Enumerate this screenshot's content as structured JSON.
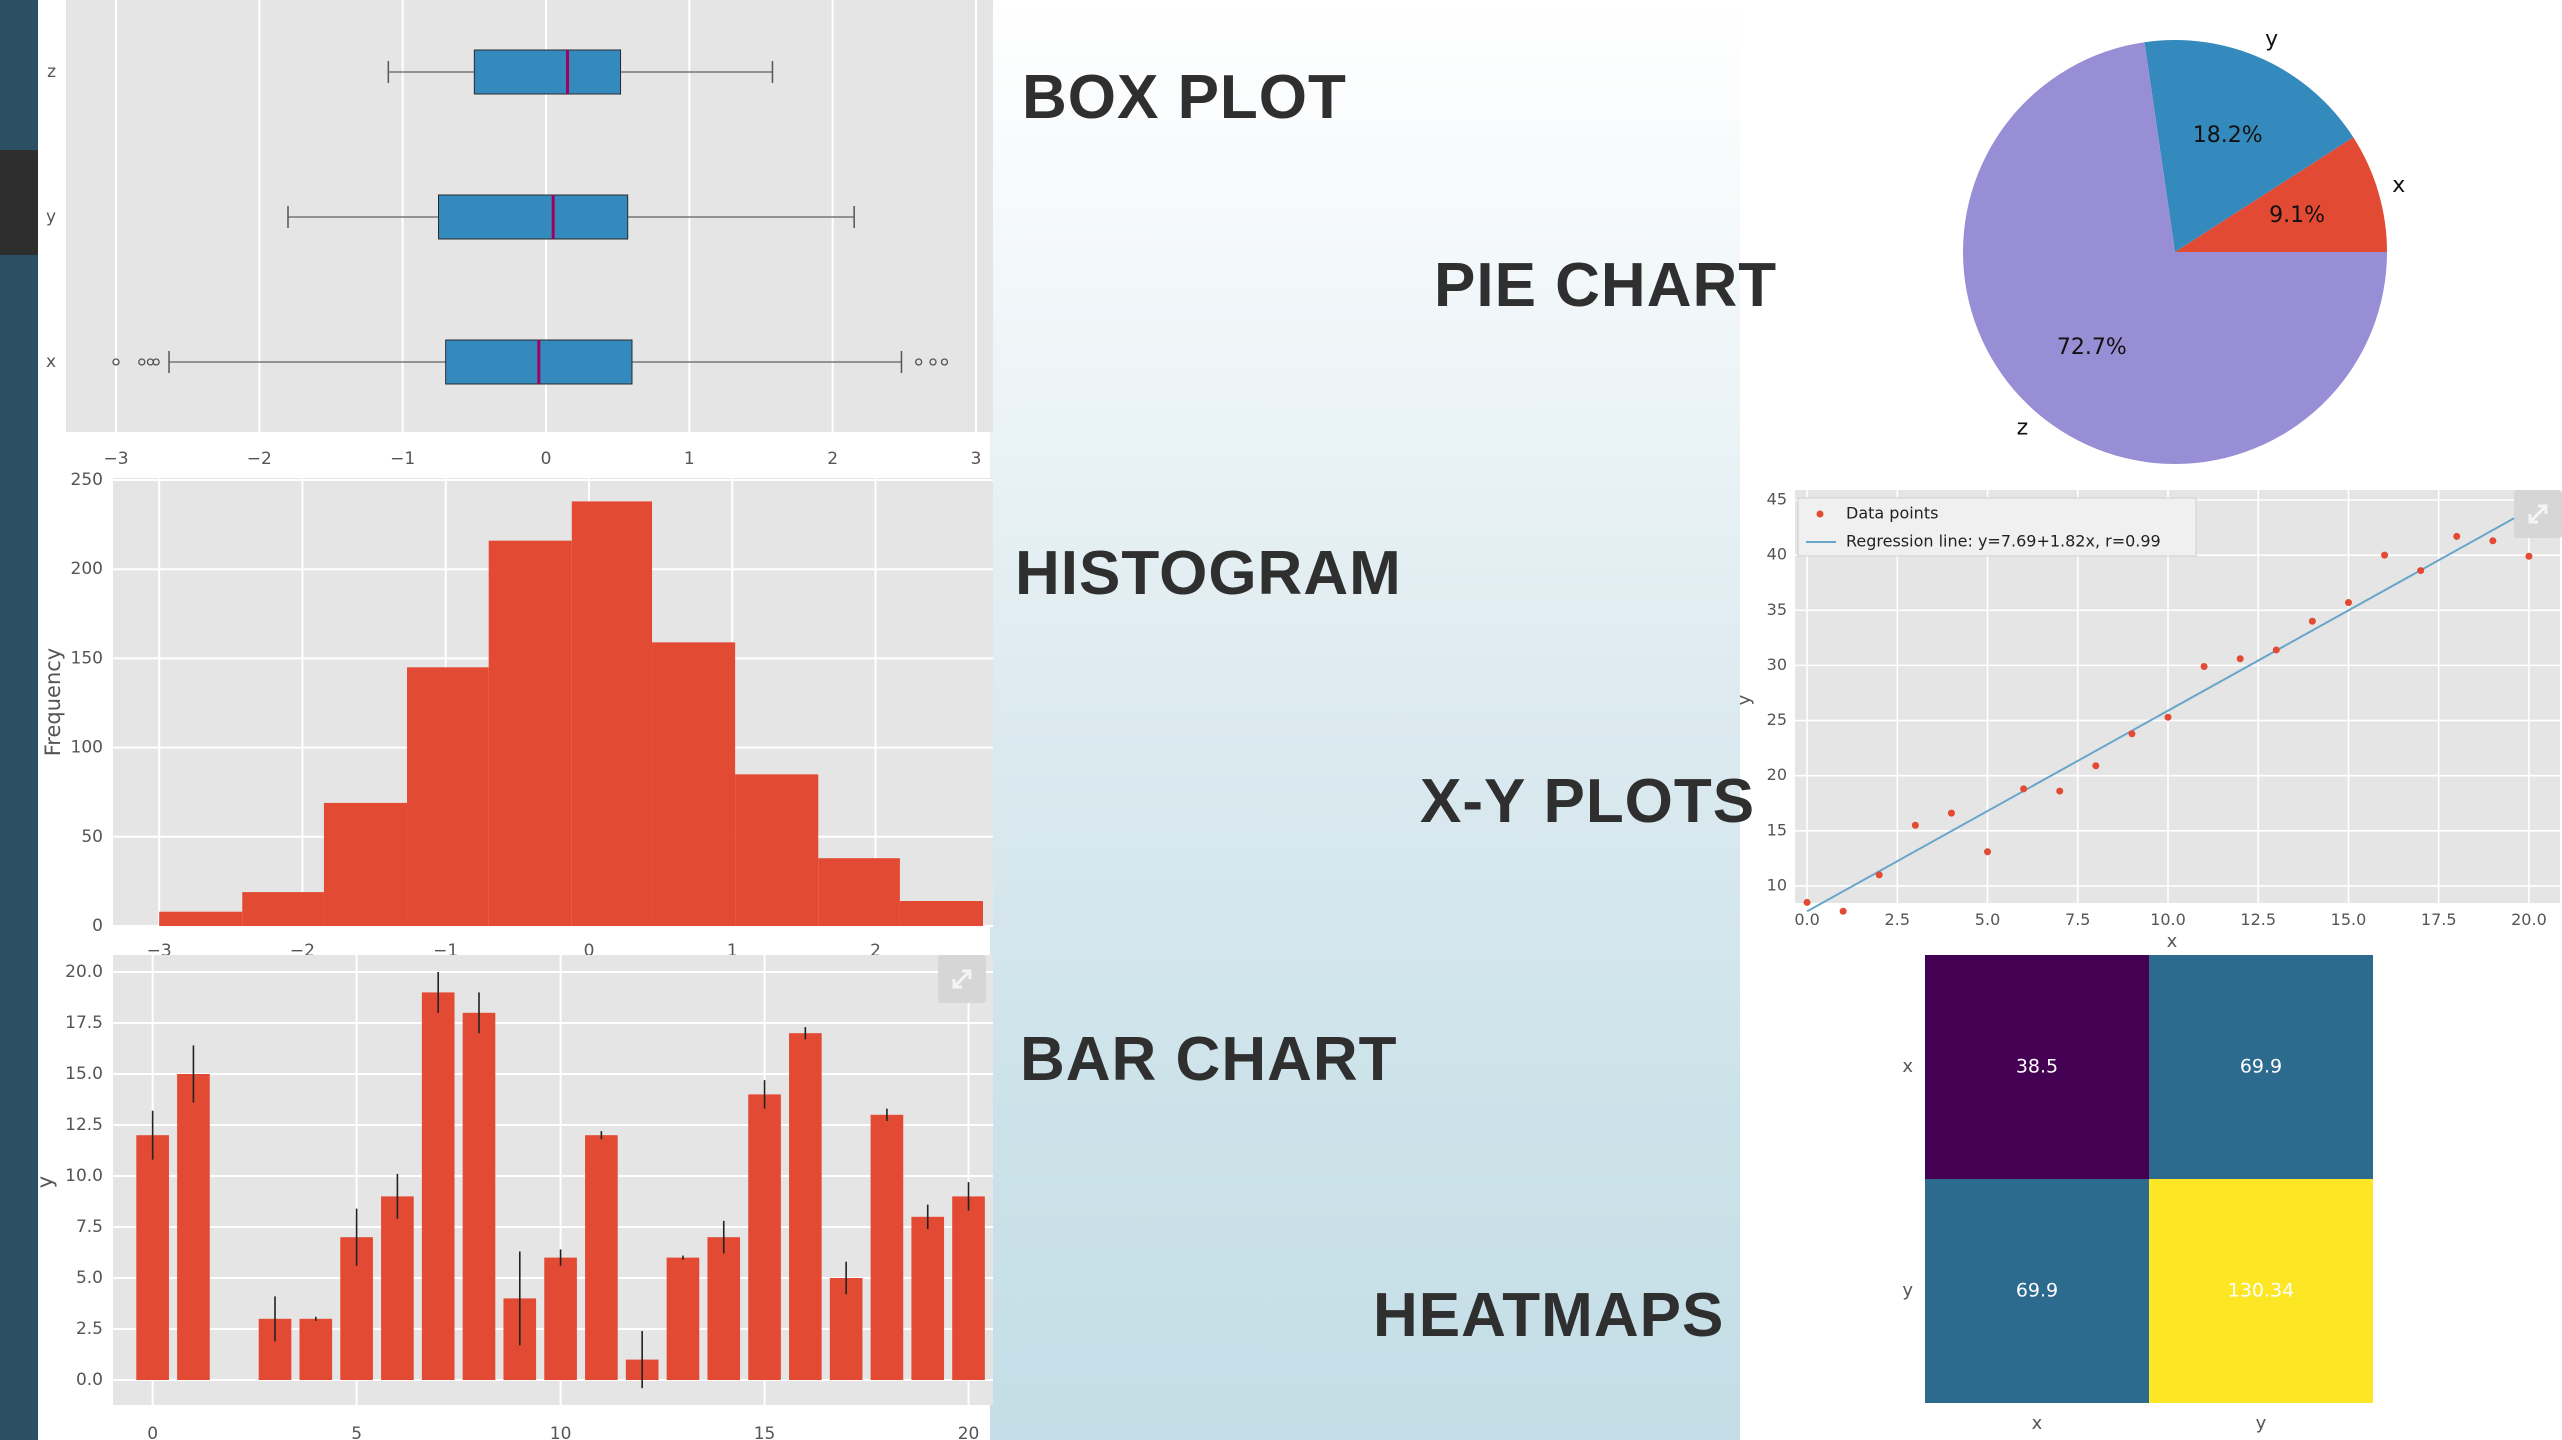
{
  "slide": {
    "labels": {
      "box_plot": "BOX PLOT",
      "pie_chart": "PIE CHART",
      "histogram": "HISTOGRAM",
      "xy_plots": "X-Y PLOTS",
      "bar_chart": "BAR CHART",
      "heatmaps": "HEATMAPS"
    },
    "colors": {
      "sidebar": "#2b4f63",
      "bar": "#e24a33",
      "box": "#348abd",
      "median": "#a00060",
      "pie_z": "#988ed5",
      "pie_y": "#348abd",
      "pie_x": "#e24a33",
      "line": "#69a6c9"
    }
  },
  "chart_data": [
    {
      "id": "box",
      "type": "box",
      "categories": [
        "z",
        "y",
        "x"
      ],
      "xlim": [
        -3,
        3
      ],
      "xticks": [
        -3,
        -2,
        -1,
        0,
        1,
        2,
        3
      ],
      "boxes": [
        {
          "label": "z",
          "whislo": -1.1,
          "q1": -0.5,
          "med": 0.15,
          "q3": 0.52,
          "whishi": 1.58,
          "fliers": []
        },
        {
          "label": "y",
          "whislo": -1.8,
          "q1": -0.75,
          "med": 0.05,
          "q3": 0.57,
          "whishi": 2.15,
          "fliers": []
        },
        {
          "label": "x",
          "whislo": -2.63,
          "q1": -0.7,
          "med": -0.05,
          "q3": 0.6,
          "whishi": 2.48,
          "fliers": [
            -3.0,
            -2.82,
            -2.76,
            -2.72,
            2.6,
            2.7,
            2.78
          ]
        }
      ]
    },
    {
      "id": "pie",
      "type": "pie",
      "slices": [
        {
          "label": "x",
          "value": 9.1,
          "text": "9.1%"
        },
        {
          "label": "y",
          "value": 18.2,
          "text": "18.2%"
        },
        {
          "label": "z",
          "value": 72.7,
          "text": "72.7%"
        }
      ]
    },
    {
      "id": "hist",
      "type": "bar",
      "ylabel": "Frequency",
      "xlim": [
        -3.05,
        2.75
      ],
      "ylim": [
        0,
        250
      ],
      "xticks": [
        -3,
        -2,
        -1,
        0,
        1,
        2
      ],
      "yticks": [
        0,
        50,
        100,
        150,
        200,
        250
      ],
      "bins": [
        {
          "x0": -3.0,
          "x1": -2.42,
          "count": 8
        },
        {
          "x0": -2.42,
          "x1": -1.85,
          "count": 19
        },
        {
          "x0": -1.85,
          "x1": -1.27,
          "count": 69
        },
        {
          "x0": -1.27,
          "x1": -0.7,
          "count": 145
        },
        {
          "x0": -0.7,
          "x1": -0.12,
          "count": 216
        },
        {
          "x0": -0.12,
          "x1": 0.44,
          "count": 238
        },
        {
          "x0": 0.44,
          "x1": 1.02,
          "count": 159
        },
        {
          "x0": 1.02,
          "x1": 1.6,
          "count": 85
        },
        {
          "x0": 1.6,
          "x1": 2.17,
          "count": 38
        },
        {
          "x0": 2.17,
          "x1": 2.75,
          "count": 14
        }
      ]
    },
    {
      "id": "xy",
      "type": "scatter",
      "xlabel": "x",
      "ylabel": "y",
      "xlim": [
        -0.5,
        20.5
      ],
      "ylim": [
        6,
        45
      ],
      "xticks": [
        0.0,
        2.5,
        5.0,
        7.5,
        10.0,
        12.5,
        15.0,
        17.5,
        20.0
      ],
      "xtick_labels": [
        "0.0",
        "2.5",
        "5.0",
        "7.5",
        "10.0",
        "12.5",
        "15.0",
        "17.5",
        "20.0"
      ],
      "yticks": [
        10,
        15,
        20,
        25,
        30,
        35,
        40,
        45
      ],
      "legend": [
        "Data points",
        "Regression line: y=7.69+1.82x, r=0.99"
      ],
      "x": [
        0,
        1,
        2,
        3,
        4,
        5,
        6,
        7,
        8,
        9,
        10,
        11,
        12,
        13,
        14,
        15,
        16,
        17,
        18,
        19,
        20
      ],
      "y": [
        8.5,
        7.7,
        11,
        15.5,
        16.6,
        13.1,
        18.8,
        18.6,
        20.9,
        23.8,
        25.3,
        29.9,
        30.6,
        31.4,
        34,
        35.7,
        40,
        38.6,
        41.7,
        41.3,
        39.9
      ],
      "regression": {
        "intercept": 7.69,
        "slope": 1.82
      }
    },
    {
      "id": "bar",
      "type": "bar",
      "ylabel": "y",
      "xlim": [
        -0.8,
        20.6
      ],
      "ylim": [
        -0.8,
        20.8
      ],
      "xticks": [
        0,
        5,
        10,
        15,
        20
      ],
      "yticks": [
        0.0,
        2.5,
        5.0,
        7.5,
        10.0,
        12.5,
        15.0,
        17.5,
        20.0
      ],
      "ytick_labels": [
        "0.0",
        "2.5",
        "5.0",
        "7.5",
        "10.0",
        "12.5",
        "15.0",
        "17.5",
        "20.0"
      ],
      "categories": [
        0,
        1,
        2,
        3,
        4,
        5,
        6,
        7,
        8,
        9,
        10,
        11,
        12,
        13,
        14,
        15,
        16,
        17,
        18,
        19,
        20
      ],
      "values": [
        12,
        15,
        0,
        3,
        3,
        7,
        9,
        19,
        18,
        4,
        6,
        12,
        1,
        6,
        7,
        14,
        17,
        5,
        13,
        8,
        9
      ],
      "errors": [
        1.2,
        1.4,
        0,
        1.1,
        0.1,
        1.4,
        1.1,
        1.0,
        1.0,
        2.3,
        0.4,
        0.2,
        1.4,
        0.1,
        0.8,
        0.7,
        0.3,
        0.8,
        0.3,
        0.6,
        0.7
      ]
    },
    {
      "id": "heat",
      "type": "heatmap",
      "xlabels": [
        "x",
        "y"
      ],
      "ylabels": [
        "x",
        "y"
      ],
      "cells": [
        [
          {
            "value": "38.5",
            "color": "#440154"
          },
          {
            "value": "69.9",
            "color": "#2c6b8e"
          }
        ],
        [
          {
            "value": "69.9",
            "color": "#2c6b8e"
          },
          {
            "value": "130.34",
            "color": "#fde725"
          }
        ]
      ]
    }
  ]
}
